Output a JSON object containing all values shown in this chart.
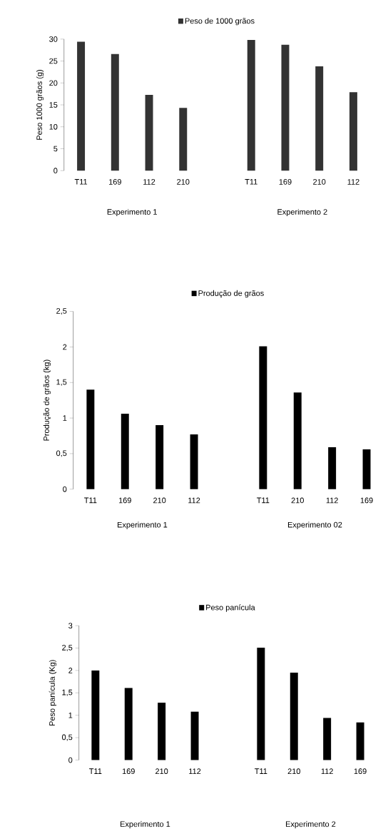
{
  "chart_data": [
    {
      "type": "bar",
      "ylabel": "Peso 1000 grãos (g)",
      "categories": [
        "T11",
        "169",
        "112",
        "210",
        null,
        "T11",
        "169",
        "210",
        "112"
      ],
      "series": [
        {
          "name": "Peso de 1000 grãos",
          "color": "#333333",
          "values": [
            29.4,
            26.6,
            17.3,
            14.3,
            null,
            29.8,
            28.7,
            23.8,
            17.9
          ]
        }
      ],
      "ylim": [
        0,
        30
      ],
      "yticks": [
        0,
        5,
        10,
        15,
        20,
        25,
        30
      ],
      "legend": "top",
      "annotations": [
        "Experimento 1",
        "Experimento 2"
      ]
    },
    {
      "type": "bar",
      "ylabel": "Produção de grãos (kg)",
      "categories": [
        "T11",
        "169",
        "210",
        "112",
        null,
        "T11",
        "210",
        "112",
        "169"
      ],
      "series": [
        {
          "name": "Produção de grãos",
          "color": "#000000",
          "values": [
            1.4,
            1.06,
            0.9,
            0.77,
            null,
            2.01,
            1.36,
            0.59,
            0.56
          ]
        }
      ],
      "ylim": [
        0,
        2.5
      ],
      "yticks": [
        0,
        {
          "value": 0.5,
          "label": "0,5"
        },
        1,
        {
          "value": 1.5,
          "label": "1,5"
        },
        2,
        {
          "value": 2.5,
          "label": "2,5"
        }
      ],
      "legend": "top",
      "annotations": [
        "Experimento 1",
        "Experimento 02"
      ]
    },
    {
      "type": "bar",
      "ylabel": "Peso panícula (Kg)",
      "categories": [
        "T11",
        "169",
        "210",
        "112",
        null,
        "T11",
        "210",
        "112",
        "169"
      ],
      "series": [
        {
          "name": "Peso panícula",
          "color": "#000000",
          "values": [
            2.0,
            1.61,
            1.28,
            1.08,
            null,
            2.51,
            1.95,
            0.94,
            0.84
          ]
        }
      ],
      "ylim": [
        0,
        3
      ],
      "yticks": [
        0,
        {
          "value": 0.5,
          "label": "0,5"
        },
        1,
        {
          "value": 1.5,
          "label": "1,5"
        },
        2,
        {
          "value": 2.5,
          "label": "2,5"
        },
        3
      ],
      "legend": "top",
      "annotations": [
        "Experimento 1",
        "Experimento 2"
      ]
    }
  ]
}
